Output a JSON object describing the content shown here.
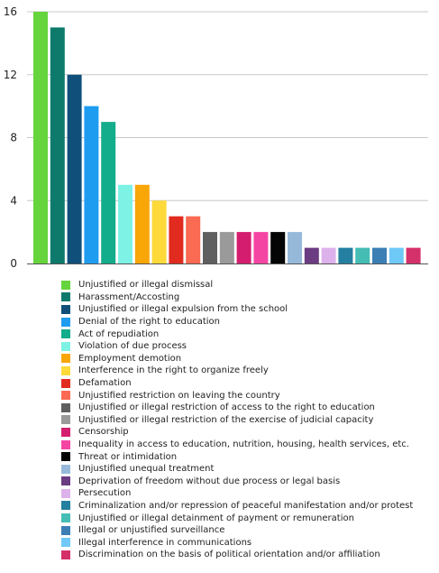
{
  "chart_data": {
    "type": "bar",
    "title": "",
    "xlabel": "",
    "ylabel": "",
    "ylim": [
      0,
      16
    ],
    "yticks": [
      0,
      4,
      8,
      12,
      16
    ],
    "grid": true,
    "legend_position": "bottom",
    "categories": [
      "Unjustified or illegal dismissal",
      "Harassment/Accosting",
      "Unjustified or illegal expulsion from the school",
      "Denial of the right to education",
      "Act of repudiation",
      "Violation of due process",
      "Employment demotion",
      "Interference in the right to organize freely",
      "Defamation",
      "Unjustified restriction on leaving the country",
      "Unjustified or illegal restriction of access to the right to education",
      "Unjustified or illegal restriction of the exercise of judicial capacity",
      "Censorship",
      "Inequality in access to education, nutrition, housing, health services, etc.",
      "Threat or intimidation",
      "Unjustified unequal treatment",
      "Deprivation of freedom without due process or legal basis",
      "Persecution",
      "Criminalization and/or repression of peaceful manifestation and/or protest",
      "Unjustified or illegal detainment of payment or remuneration",
      "Illegal or unjustified surveillance",
      "Illegal interference in communications",
      "Discrimination on the basis of political orientation and/or affiliation"
    ],
    "values": [
      16,
      15,
      12,
      10,
      9,
      5,
      5,
      4,
      3,
      3,
      2,
      2,
      2,
      2,
      2,
      2,
      1,
      1,
      1,
      1,
      1,
      1,
      1
    ],
    "colors": [
      "#66d43c",
      "#0e7a6c",
      "#0f4f7a",
      "#1e9df0",
      "#13ad8b",
      "#7ef2e4",
      "#f9a608",
      "#fdd93a",
      "#e12b1f",
      "#fb6a52",
      "#5f5f5f",
      "#9a9a9a",
      "#d41d6e",
      "#f545a3",
      "#050505",
      "#97b9d9",
      "#6b3c82",
      "#ddb2ec",
      "#247fa0",
      "#45bdb5",
      "#3c7fb5",
      "#6fc9f7",
      "#d4306a"
    ]
  }
}
